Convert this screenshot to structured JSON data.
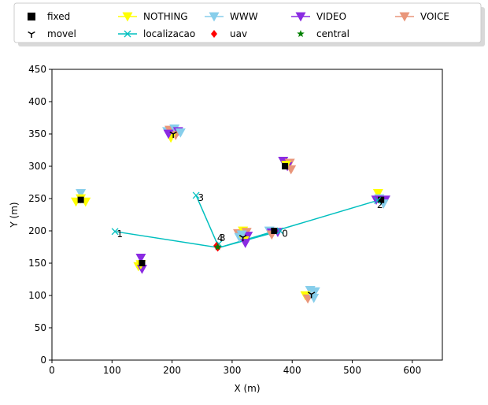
{
  "chart_data": {
    "type": "scatter",
    "title": "",
    "xlabel": "X (m)",
    "ylabel": "Y (m)",
    "xlim": [
      0,
      650
    ],
    "ylim": [
      0,
      450
    ],
    "xticks": [
      0,
      100,
      200,
      300,
      400,
      500,
      600
    ],
    "yticks": [
      0,
      50,
      100,
      150,
      200,
      250,
      300,
      350,
      400,
      450
    ],
    "grid": false,
    "legend_placement": "top, outside plot, 5 columns",
    "legend": [
      {
        "name": "fixed",
        "marker": "square",
        "color": "#000000",
        "line": false
      },
      {
        "name": "NOTHING",
        "marker": "triangle_down",
        "color": "#ffff00",
        "line": true
      },
      {
        "name": "WWW",
        "marker": "triangle_down",
        "color": "#87ceeb",
        "line": true
      },
      {
        "name": "VIDEO",
        "marker": "triangle_down",
        "color": "#8a2be2",
        "line": true
      },
      {
        "name": "VOICE",
        "marker": "triangle_down",
        "color": "#e9967a",
        "line": true
      },
      {
        "name": "movel",
        "marker": "tri_down",
        "color": "#000000",
        "line": false
      },
      {
        "name": "localizacao",
        "marker": "x",
        "color": "#00bfbf",
        "line": true
      },
      {
        "name": "uav",
        "marker": "diamond",
        "color": "#ff0000",
        "line": false
      },
      {
        "name": "central",
        "marker": "star",
        "color": "#008000",
        "line": false
      }
    ],
    "colors": {
      "NOTHING": "#ffff00",
      "WWW": "#87ceeb",
      "VIDEO": "#8a2be2",
      "VOICE": "#e9967a",
      "localizacao": "#00bfbf",
      "uav": "#ff0000",
      "central": "#008000"
    },
    "clusters": [
      {
        "x": 48,
        "y": 248,
        "center": "fixed",
        "tris": [
          [
            "WWW",
            48,
            258
          ],
          [
            "NOTHING",
            40,
            245
          ],
          [
            "NOTHING",
            56,
            245
          ],
          [
            "NOTHING",
            48,
            250
          ]
        ]
      },
      {
        "x": 150,
        "y": 150,
        "center": "fixed",
        "tris": [
          [
            "VIDEO",
            148,
            158
          ],
          [
            "NOTHING",
            144,
            145
          ],
          [
            "VIDEO",
            150,
            141
          ],
          [
            "NOTHING",
            148,
            148
          ]
        ]
      },
      {
        "x": 202,
        "y": 350,
        "center": "movel",
        "tris": [
          [
            "WWW",
            192,
            354
          ],
          [
            "VOICE",
            196,
            356
          ],
          [
            "WWW",
            204,
            358
          ],
          [
            "VIDEO",
            210,
            354
          ],
          [
            "VOICE",
            206,
            348
          ],
          [
            "NOTHING",
            198,
            344
          ],
          [
            "WWW",
            214,
            352
          ],
          [
            "VIDEO",
            194,
            350
          ]
        ]
      },
      {
        "x": 388,
        "y": 300,
        "center": "fixed",
        "tris": [
          [
            "VIDEO",
            385,
            308
          ],
          [
            "VOICE",
            396,
            305
          ],
          [
            "VIDEO",
            392,
            300
          ],
          [
            "VOICE",
            398,
            295
          ],
          [
            "NOTHING",
            390,
            302
          ]
        ]
      },
      {
        "x": 548,
        "y": 248,
        "center": "fixed",
        "tris": [
          [
            "NOTHING",
            543,
            258
          ],
          [
            "WWW",
            545,
            250
          ],
          [
            "VIDEO",
            555,
            248
          ],
          [
            "WWW",
            552,
            242
          ],
          [
            "VIDEO",
            540,
            248
          ]
        ]
      },
      {
        "x": 318,
        "y": 190,
        "center": "movel",
        "tris": [
          [
            "VOICE",
            310,
            196
          ],
          [
            "NOTHING",
            318,
            200
          ],
          [
            "VOICE",
            324,
            198
          ],
          [
            "WWW",
            312,
            190
          ],
          [
            "VIDEO",
            326,
            192
          ],
          [
            "NOTHING",
            320,
            185
          ],
          [
            "VIDEO",
            322,
            181
          ],
          [
            "WWW",
            316,
            194
          ]
        ]
      },
      {
        "x": 370,
        "y": 200,
        "center": "fixed",
        "tris": [
          [
            "WWW",
            362,
            200
          ],
          [
            "VIDEO",
            366,
            197
          ],
          [
            "VOICE",
            366,
            194
          ],
          [
            "VIDEO",
            376,
            198
          ]
        ]
      },
      {
        "x": 432,
        "y": 102,
        "center": "movel",
        "tris": [
          [
            "WWW",
            430,
            108
          ],
          [
            "WWW",
            438,
            106
          ],
          [
            "NOTHING",
            422,
            100
          ],
          [
            "VOICE",
            426,
            95
          ],
          [
            "WWW",
            436,
            96
          ]
        ]
      }
    ],
    "localizacao": [
      {
        "label": "0",
        "x": 380,
        "y": 200
      },
      {
        "label": "1",
        "x": 105,
        "y": 199
      },
      {
        "label": "2",
        "x": 542,
        "y": 247
      },
      {
        "label": "3",
        "x": 240,
        "y": 255
      },
      {
        "label": "4",
        "x": 278,
        "y": 180
      }
    ],
    "uav_paths": [
      {
        "from": [
          278,
          174
        ],
        "to": [
          105,
          199
        ]
      },
      {
        "from": [
          278,
          174
        ],
        "to": [
          380,
          200
        ]
      },
      {
        "from": [
          278,
          174
        ],
        "to": [
          542,
          247
        ]
      },
      {
        "from": [
          278,
          174
        ],
        "to": [
          240,
          255
        ]
      }
    ],
    "point_labels": [
      {
        "text": "0",
        "x": 383,
        "y": 196
      },
      {
        "text": "1",
        "x": 108,
        "y": 195
      },
      {
        "text": "2",
        "x": 541,
        "y": 240
      },
      {
        "text": "3",
        "x": 243,
        "y": 251
      },
      {
        "text": "4",
        "x": 275,
        "y": 189
      },
      {
        "text": "3",
        "x": 279,
        "y": 189
      }
    ],
    "uav": [
      {
        "x": 276,
        "y": 174
      },
      {
        "x": 274,
        "y": 177
      }
    ],
    "central": {
      "x": 276,
      "y": 175
    }
  }
}
